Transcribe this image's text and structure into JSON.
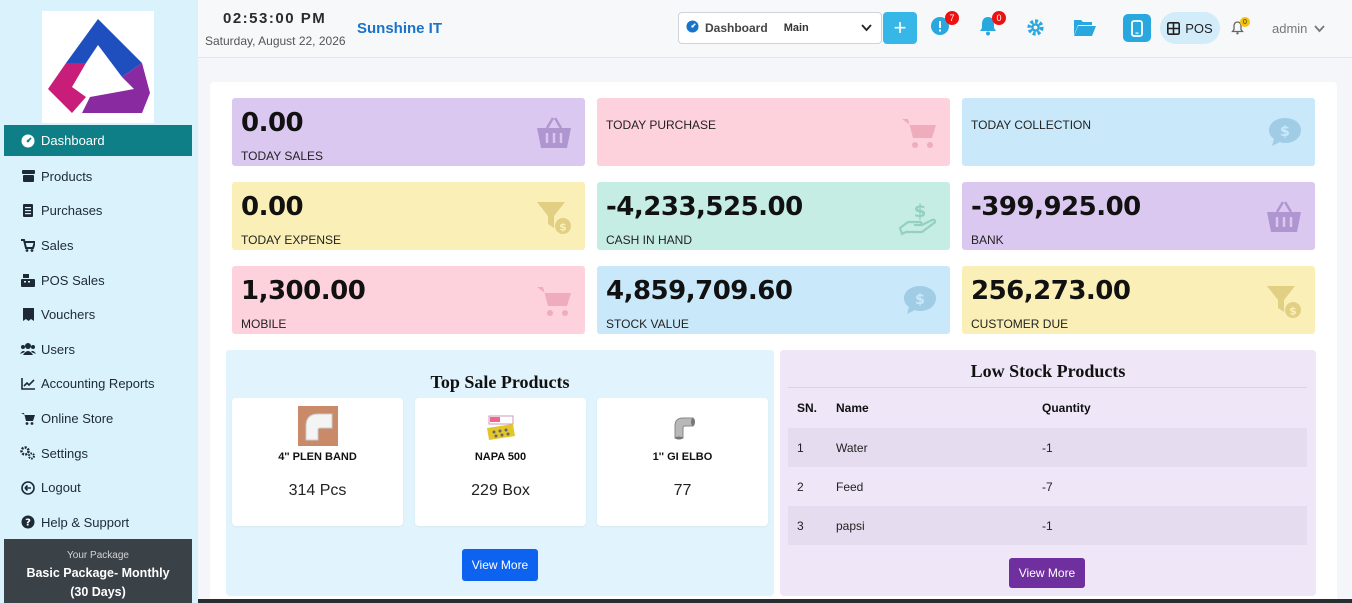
{
  "sidebar": {
    "items": [
      {
        "label": "Dashboard",
        "icon": "dashboard-icon"
      },
      {
        "label": "Products",
        "icon": "box-icon"
      },
      {
        "label": "Purchases",
        "icon": "file-icon"
      },
      {
        "label": "Sales",
        "icon": "cart-icon"
      },
      {
        "label": "POS Sales",
        "icon": "cash-register-icon"
      },
      {
        "label": "Vouchers",
        "icon": "receipt-icon"
      },
      {
        "label": "Users",
        "icon": "users-icon"
      },
      {
        "label": "Accounting Reports",
        "icon": "chart-line-icon"
      },
      {
        "label": "Online Store",
        "icon": "cart-icon"
      },
      {
        "label": "Settings",
        "icon": "gears-icon"
      },
      {
        "label": "Logout",
        "icon": "logout-icon"
      },
      {
        "label": "Help & Support",
        "icon": "question-icon"
      }
    ],
    "package_label": "Your Package",
    "package_name": "Basic Package- Monthly (30 Days)"
  },
  "topbar": {
    "time": "02:53:00 PM",
    "date": "Saturday, August 22, 2026",
    "company": "Sunshine IT",
    "dashboard_label": "Dashboard",
    "dashboard_select_value": "Main",
    "alert_count": "7",
    "notification_count": "0",
    "small_notification_count": "0",
    "pos_label": "POS",
    "user": "admin"
  },
  "cards": [
    {
      "value": "0.00",
      "label": "TODAY SALES",
      "color": "#dbc8f0",
      "icon": "basket-icon"
    },
    {
      "value": "",
      "label": "TODAY PURCHASE",
      "color": "#fdd2dc",
      "icon": "cart-icon"
    },
    {
      "value": "",
      "label": "TODAY COLLECTION",
      "color": "#c9e9fb",
      "icon": "dollar-chat-icon"
    },
    {
      "value": "0.00",
      "label": "TODAY EXPENSE",
      "color": "#faefb6",
      "icon": "filter-dollar-icon"
    },
    {
      "value": "-4,233,525.00",
      "label": "CASH IN HAND",
      "color": "#c5ede3",
      "icon": "hand-dollar-icon"
    },
    {
      "value": "-399,925.00",
      "label": "BANK",
      "color": "#dbc8f0",
      "icon": "basket-icon"
    },
    {
      "value": "1,300.00",
      "label": "MOBILE",
      "color": "#fdd2dc",
      "icon": "cart-icon"
    },
    {
      "value": "4,859,709.60",
      "label": "STOCK VALUE",
      "color": "#c9e9fb",
      "icon": "dollar-chat-icon"
    },
    {
      "value": "256,273.00",
      "label": "CUSTOMER DUE",
      "color": "#faefb6",
      "icon": "filter-dollar-icon"
    }
  ],
  "top_sale": {
    "title": "Top Sale Products",
    "products": [
      {
        "name": "4'' PLEN BAND",
        "qty": "314 Pcs"
      },
      {
        "name": "NAPA 500",
        "qty": "229 Box"
      },
      {
        "name": "1'' GI ELBO",
        "qty": "77"
      }
    ],
    "view_more": "View More"
  },
  "low_stock": {
    "title": "Low Stock Products",
    "headers": [
      "SN.",
      "Name",
      "Quantity"
    ],
    "rows": [
      [
        "1",
        "Water",
        "-1"
      ],
      [
        "2",
        "Feed",
        "-7"
      ],
      [
        "3",
        "papsi",
        "-1"
      ]
    ],
    "view_more": "View More"
  }
}
